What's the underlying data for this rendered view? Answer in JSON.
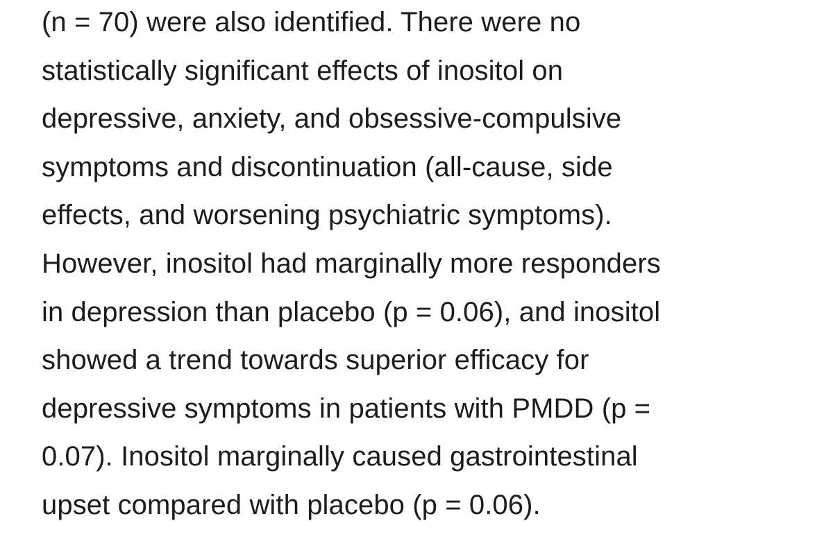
{
  "paragraph": {
    "lines": [
      "(n = 70) were also identified. There were no",
      "statistically significant effects of inositol on",
      "depressive, anxiety, and obsessive-compulsive",
      "symptoms and discontinuation (all-cause, side",
      "effects, and worsening psychiatric symptoms).",
      "However, inositol had marginally more responders",
      "in depression than placebo (p = 0.06), and inositol",
      "showed a trend towards superior efficacy for",
      "depressive symptoms in patients with PMDD (p =",
      "0.07). Inositol marginally caused gastrointestinal",
      "upset compared with placebo (p = 0.06)."
    ]
  }
}
